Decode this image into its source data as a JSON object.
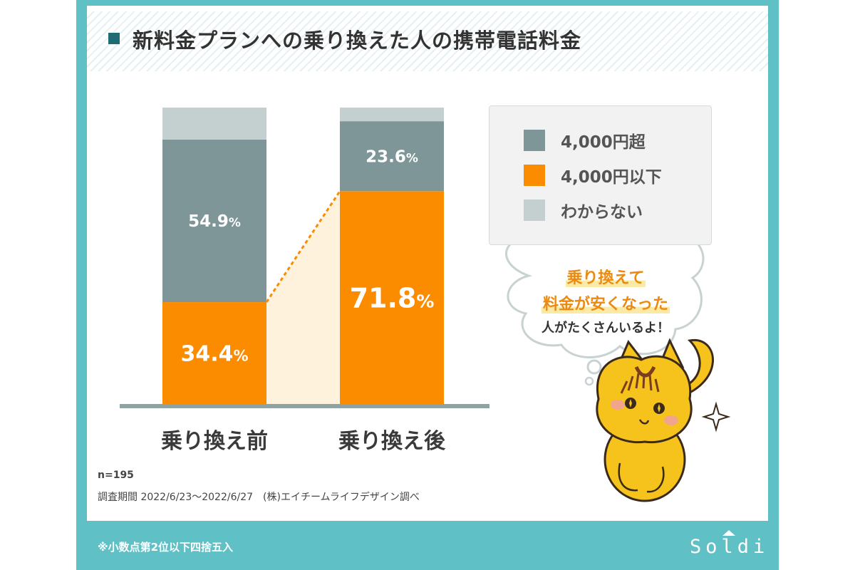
{
  "title": "新料金プランへの乗り換えた人の携帯電話料金",
  "chart_data": {
    "type": "bar",
    "stacked": true,
    "categories": [
      "乗り換え前",
      "乗り換え後"
    ],
    "series": [
      {
        "name": "4,000円以下",
        "color": "#fb8c00",
        "values": [
          34.4,
          71.8
        ],
        "labels": [
          "34.4%",
          "71.8%"
        ]
      },
      {
        "name": "4,000円超",
        "color": "#7e9698",
        "values": [
          54.9,
          23.6
        ],
        "labels": [
          "54.9%",
          "23.6%"
        ]
      },
      {
        "name": "わからない",
        "color": "#c4d0d0",
        "values": [
          10.8,
          4.6
        ]
      }
    ],
    "ylim": [
      0,
      100
    ],
    "legend": "right",
    "grid": false
  },
  "legend_order": [
    1,
    0,
    2
  ],
  "bubble": {
    "line1": "乗り換えて",
    "line2": "料金が安くなった",
    "line3": "人がたくさんいるよ！"
  },
  "notes": {
    "n": "n=195",
    "period": "調査期間 2022/6/23〜2022/6/27　(株)エイチームライフデザイン調べ"
  },
  "footer": {
    "note": "※小数点第2位以下四捨五入",
    "brand": "Soldi"
  },
  "colors": {
    "frame": "#5fc0c6",
    "title_accent": "#1e6d74",
    "connector": "#fef2dc",
    "mascot": "#f6c21c"
  },
  "icons": [
    "mascot-squirrel-illustration",
    "sparkle-icon",
    "speech-cloud"
  ]
}
